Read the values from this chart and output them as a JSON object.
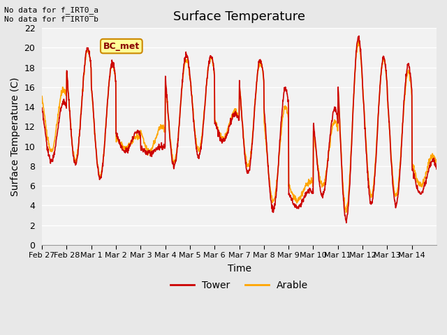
{
  "title": "Surface Temperature",
  "xlabel": "Time",
  "ylabel": "Surface Temperature (C)",
  "ylim": [
    0,
    22
  ],
  "yticks": [
    0,
    2,
    4,
    6,
    8,
    10,
    12,
    14,
    16,
    18,
    20,
    22
  ],
  "xtick_labels": [
    "Feb 27",
    "Feb 28",
    "Mar 1",
    "Mar 2",
    "Mar 3",
    "Mar 4",
    "Mar 5",
    "Mar 6",
    "Mar 7",
    "Mar 8",
    "Mar 9",
    "Mar 10",
    "Mar 11",
    "Mar 12",
    "Mar 13",
    "Mar 14"
  ],
  "n_days": 16,
  "tower_color": "#CC0000",
  "arable_color": "#FFA500",
  "bg_color": "#E8E8E8",
  "plot_bg": "#F2F2F2",
  "grid_color": "#FFFFFF",
  "legend_label_tower": "Tower",
  "legend_label_arable": "Arable",
  "bc_met_label": "BC_met",
  "bc_met_color": "#FFFF99",
  "bc_met_border": "#CC8800",
  "note1": "No data for f_IRT0_a",
  "note2": "No data for f̅IRT0̅b",
  "linewidth": 1.2,
  "days_data_tower": [
    [
      0,
      4,
      8.5,
      14,
      14.5
    ],
    [
      1,
      4,
      8.2,
      13,
      20.0
    ],
    [
      2,
      4,
      6.8,
      13,
      18.5
    ],
    [
      3,
      4,
      9.5,
      14,
      11.5
    ],
    [
      4,
      4,
      9.3,
      13,
      10.0
    ],
    [
      5,
      4,
      8.0,
      13,
      19.3
    ],
    [
      6,
      4,
      9.0,
      13,
      19.2
    ],
    [
      7,
      4,
      10.5,
      12,
      13.3
    ],
    [
      8,
      4,
      7.3,
      13,
      18.8
    ],
    [
      9,
      4,
      3.5,
      14,
      15.8
    ],
    [
      10,
      4,
      3.8,
      13,
      5.5
    ],
    [
      11,
      4,
      5.0,
      14,
      13.8
    ],
    [
      12,
      4,
      2.5,
      12,
      21.0
    ],
    [
      13,
      4,
      4.2,
      13,
      19.0
    ],
    [
      14,
      4,
      4.0,
      13,
      18.3
    ],
    [
      15,
      4,
      5.2,
      13,
      8.5
    ]
  ],
  "days_data_arable": [
    [
      0,
      4,
      9.5,
      14,
      15.8
    ],
    [
      1,
      4,
      8.5,
      13,
      19.8
    ],
    [
      2,
      4,
      7.0,
      13,
      18.3
    ],
    [
      3,
      4,
      9.8,
      14,
      11.0
    ],
    [
      4,
      4,
      9.5,
      13,
      12.0
    ],
    [
      5,
      4,
      8.5,
      13,
      18.8
    ],
    [
      6,
      4,
      9.5,
      13,
      19.0
    ],
    [
      7,
      4,
      10.8,
      12,
      13.5
    ],
    [
      8,
      4,
      8.0,
      13,
      18.5
    ],
    [
      9,
      4,
      4.5,
      14,
      14.0
    ],
    [
      10,
      4,
      4.5,
      13,
      6.5
    ],
    [
      11,
      4,
      6.0,
      14,
      12.5
    ],
    [
      12,
      4,
      3.5,
      12,
      20.5
    ],
    [
      13,
      4,
      5.0,
      13,
      18.8
    ],
    [
      14,
      4,
      5.0,
      13,
      17.5
    ],
    [
      15,
      4,
      6.0,
      13,
      9.0
    ]
  ]
}
